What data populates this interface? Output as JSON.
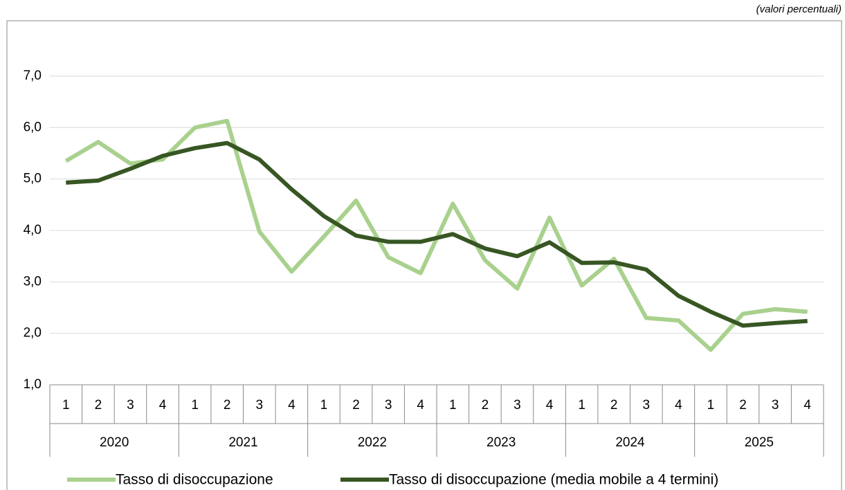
{
  "chart_data": {
    "type": "line",
    "note": "(valori percentuali)",
    "categories": [
      "1",
      "2",
      "3",
      "4",
      "1",
      "2",
      "3",
      "4",
      "1",
      "2",
      "3",
      "4",
      "1",
      "2",
      "3",
      "4",
      "1",
      "2",
      "3",
      "4",
      "1",
      "2",
      "3",
      "4"
    ],
    "groups": [
      "2020",
      "2021",
      "2022",
      "2023",
      "2024",
      "2025"
    ],
    "series": [
      {
        "name": "Tasso di disoccupazione",
        "color": "#a9d18e",
        "values": [
          5.35,
          5.72,
          5.3,
          5.38,
          6.0,
          6.13,
          3.98,
          3.2,
          3.88,
          4.58,
          3.48,
          3.17,
          4.52,
          3.42,
          2.87,
          4.25,
          2.93,
          3.45,
          2.3,
          2.25,
          1.68,
          2.38,
          2.47,
          2.42
        ]
      },
      {
        "name": "Tasso di disoccupazione (media mobile a 4 termini)",
        "color": "#375623",
        "values": [
          4.93,
          4.97,
          5.2,
          5.45,
          5.6,
          5.7,
          5.38,
          4.8,
          4.28,
          3.9,
          3.78,
          3.78,
          3.93,
          3.65,
          3.5,
          3.77,
          3.37,
          3.38,
          3.24,
          2.73,
          2.42,
          2.15,
          2.2,
          2.24
        ]
      }
    ],
    "ylim": [
      1,
      8
    ],
    "yticks": [
      {
        "value": 1,
        "label": "1,0"
      },
      {
        "value": 2,
        "label": "2,0"
      },
      {
        "value": 3,
        "label": "3,0"
      },
      {
        "value": 4,
        "label": "4,0"
      },
      {
        "value": 5,
        "label": "5,0"
      },
      {
        "value": 6,
        "label": "6,0"
      },
      {
        "value": 7,
        "label": "7,0"
      }
    ],
    "grid": true,
    "legend": "bottom"
  }
}
